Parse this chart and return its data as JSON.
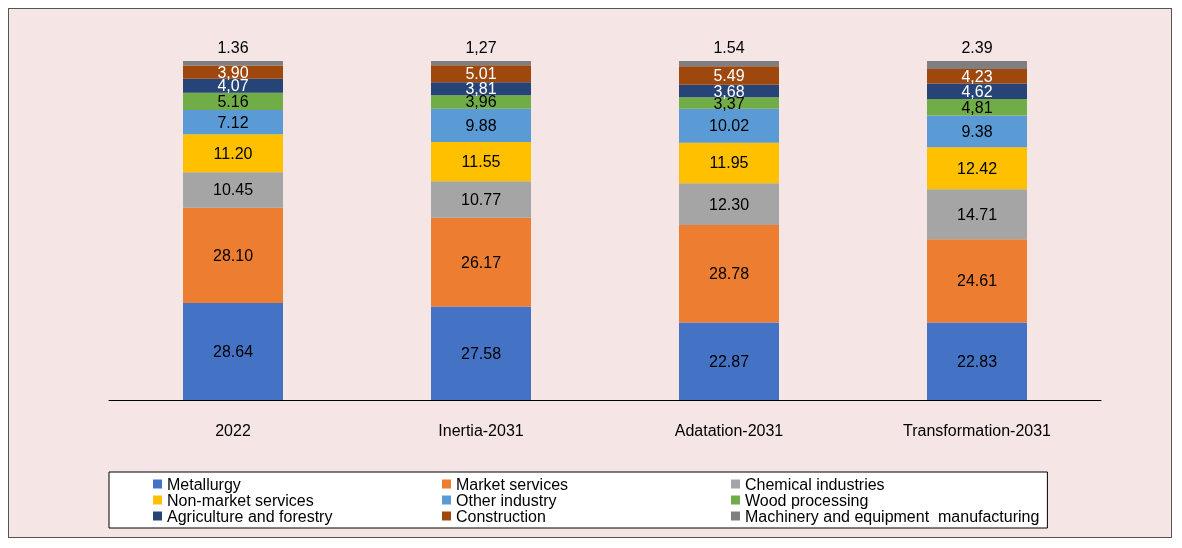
{
  "chart_data": {
    "type": "bar",
    "stacked": true,
    "categories": [
      "2022",
      "Inertia-2031",
      "Adatation-2031",
      "Transformation-2031"
    ],
    "legend": "bottom",
    "series": [
      {
        "name": "Metallurgy",
        "color": "#4472c4",
        "values": [
          28.64,
          27.58,
          22.87,
          22.83
        ],
        "value_labels": [
          "28.64",
          "27.58",
          "22.87",
          "22.83"
        ]
      },
      {
        "name": "Market services",
        "color": "#ed7d31",
        "values": [
          28.1,
          26.17,
          28.78,
          24.61
        ],
        "value_labels": [
          "28.10",
          "26.17",
          "28.78",
          "24.61"
        ]
      },
      {
        "name": "Chemical industries",
        "color": "#a5a5a5",
        "values": [
          10.45,
          10.77,
          12.3,
          14.71
        ],
        "value_labels": [
          "10.45",
          "10.77",
          "12.30",
          "14.71"
        ]
      },
      {
        "name": "Non-market services",
        "color": "#ffc000",
        "values": [
          11.2,
          11.55,
          11.95,
          12.42
        ],
        "value_labels": [
          "11.20",
          "11.55",
          "11.95",
          "12.42"
        ]
      },
      {
        "name": "Other industry",
        "color": "#5b9bd5",
        "values": [
          7.12,
          9.88,
          10.02,
          9.38
        ],
        "value_labels": [
          "7.12",
          "9.88",
          "10.02",
          "9.38"
        ]
      },
      {
        "name": "Wood processing",
        "color": "#70ad47",
        "values": [
          5.16,
          3.96,
          3.37,
          4.81
        ],
        "value_labels": [
          "5.16",
          "3,96",
          "3,37",
          "4,81"
        ]
      },
      {
        "name": "Agriculture and forestry",
        "color": "#264478",
        "values": [
          4.07,
          3.81,
          3.68,
          4.62
        ],
        "value_labels": [
          "4,07",
          "3,81",
          "3,68",
          "4,62"
        ]
      },
      {
        "name": "Construction",
        "color": "#9e480e",
        "values": [
          3.9,
          5.01,
          5.49,
          4.23
        ],
        "value_labels": [
          "3,90",
          "5.01",
          "5.49",
          "4,23"
        ]
      },
      {
        "name": "Machinery and equipment  manufacturing",
        "color": "#7f7f7f",
        "values": [
          1.36,
          1.27,
          1.54,
          2.39
        ],
        "value_labels": [
          "1.36",
          "1,27",
          "1.54",
          "2.39"
        ]
      }
    ]
  }
}
